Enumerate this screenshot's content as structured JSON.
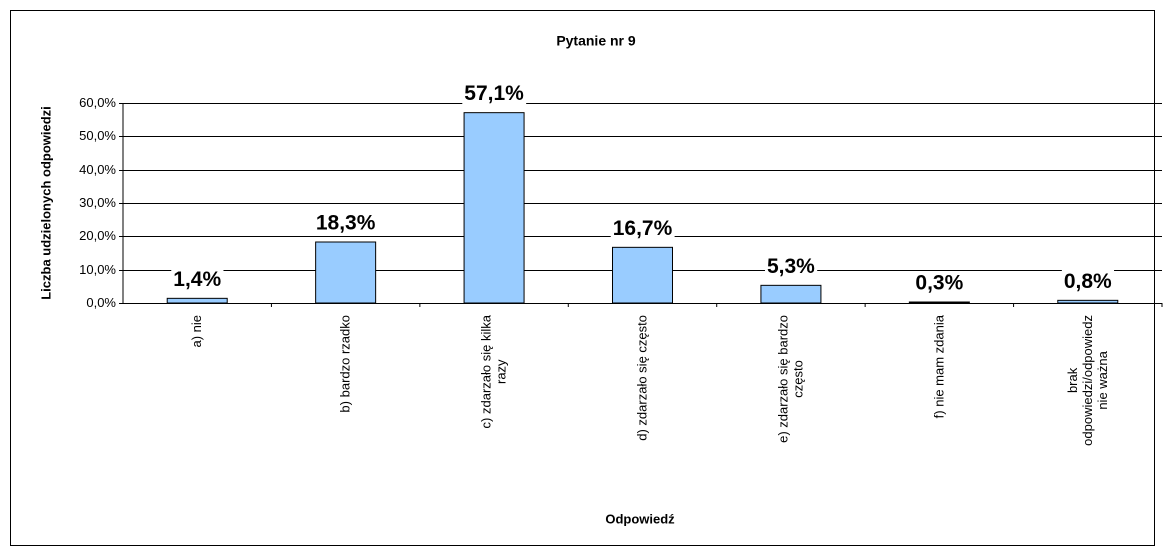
{
  "chart_data": {
    "type": "bar",
    "title": "Pytanie nr 9",
    "y_label": "Liczba udzielonych odpowiedzi",
    "x_label": "Odpowiedź",
    "categories": [
      "a) nie",
      "b) bardzo rzadko",
      "c) zdarzało się kilka razy",
      "d) zdarzało się często",
      "e) zdarzało się bardzo często",
      "f) nie mam zdania",
      "brak odpowiedzi/odpowiedz nie ważna"
    ],
    "values": [
      1.4,
      18.3,
      57.1,
      16.7,
      5.3,
      0.3,
      0.8
    ],
    "value_labels": [
      "1,4%",
      "18,3%",
      "57,1%",
      "16,7%",
      "5,3%",
      "0,3%",
      "0,8%"
    ],
    "color": "#99ccff",
    "ylim": [
      0,
      60
    ],
    "yticks": [
      {
        "value": 0,
        "label": "0,0%"
      },
      {
        "value": 10,
        "label": "10,0%"
      },
      {
        "value": 20,
        "label": "20,0%"
      },
      {
        "value": 30,
        "label": "30,0%"
      },
      {
        "value": 40,
        "label": "40,0%"
      },
      {
        "value": 50,
        "label": "50,0%"
      },
      {
        "value": 60,
        "label": "60,0%"
      }
    ],
    "grid": true
  }
}
